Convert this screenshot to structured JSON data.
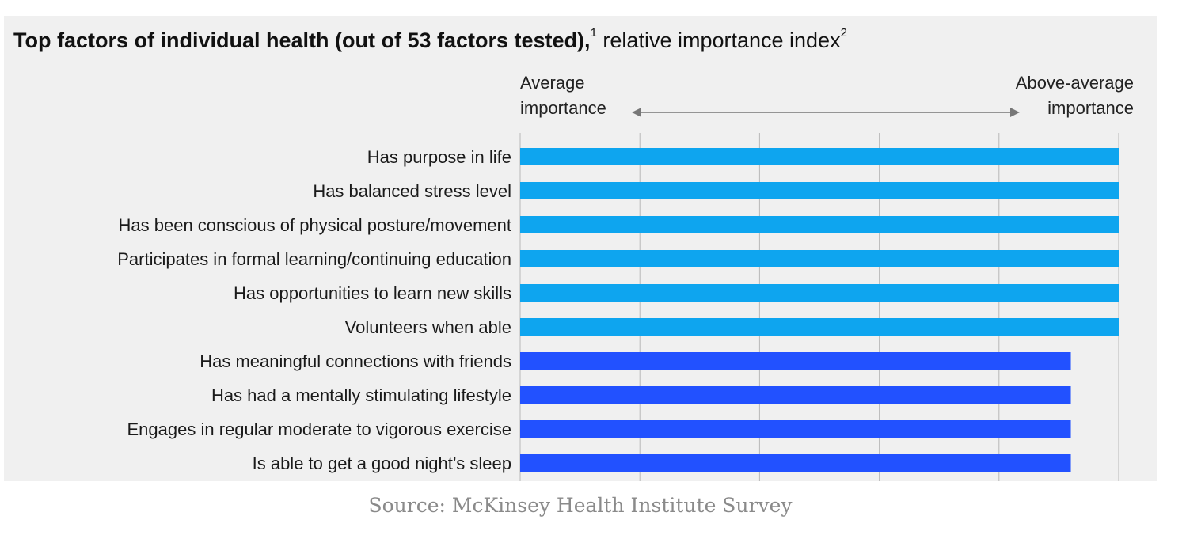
{
  "title": {
    "bold": "Top factors of individual health (out of 53 factors tested),",
    "sup1": "1",
    "normal": "relative importance index",
    "sup2": "2"
  },
  "scale": {
    "left_line1": "Average",
    "left_line2": "importance",
    "right_line1": "Above-average",
    "right_line2": "importance"
  },
  "source": "Source: McKinsey Health Institute Survey",
  "colors": {
    "panel": "#f0f0f0",
    "gridline": "#b8b8b8",
    "top_tier": "#0ea5ef",
    "second_tier": "#2251ff",
    "arrow": "#777777"
  },
  "chart_data": {
    "type": "bar",
    "orientation": "horizontal",
    "title": "Top factors of individual health (out of 53 factors tested), relative importance index",
    "xlabel": "",
    "ylabel": "",
    "xlim": [
      0,
      5
    ],
    "grid": true,
    "categories": [
      "Has purpose in life",
      "Has balanced stress level",
      "Has been conscious of physical posture/movement",
      "Participates in formal learning/continuing education",
      "Has opportunities to learn new skills",
      "Volunteers when able",
      "Has meaningful connections with friends",
      "Has had a mentally stimulating lifestyle",
      "Engages in regular moderate to vigorous exercise",
      "Is able to get a good night’s sleep"
    ],
    "values": [
      5,
      5,
      5,
      5,
      5,
      5,
      4.6,
      4.6,
      4.6,
      4.6
    ],
    "tiers": [
      "top",
      "top",
      "top",
      "top",
      "top",
      "top",
      "second",
      "second",
      "second",
      "second"
    ]
  }
}
